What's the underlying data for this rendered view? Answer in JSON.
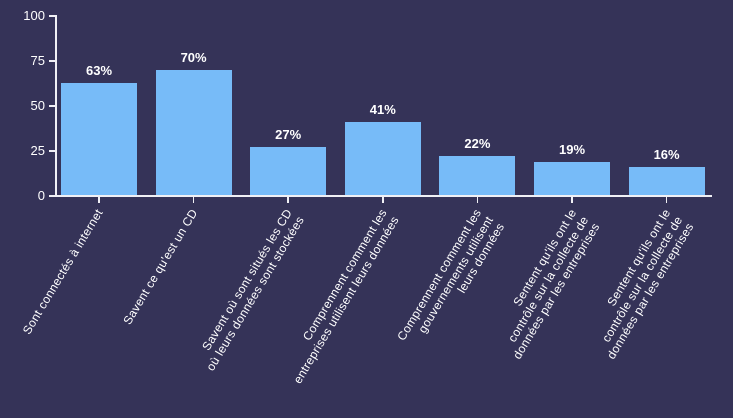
{
  "chart_data": {
    "type": "bar",
    "title": "",
    "xlabel": "",
    "ylabel": "",
    "ylim": [
      0,
      100
    ],
    "y_ticks": [
      0,
      25,
      50,
      75,
      100
    ],
    "grid": "off",
    "legend": "none",
    "categories": [
      "Sont connectés à internet",
      "Savent ce qu'est un CD",
      "Savent où sont situés les CD où leurs données sont stockées",
      "Comprennent comment les entreprises utilisent leurs données",
      "Comprennent comment les gouvernements utilisent leurs données",
      "Sentent qu'ils ont le contrôle sur la collecte de données par les entreprises",
      "Sentent qu'ils ont le contrôle sur la collecte de données par les entreprises"
    ],
    "categories_lines": [
      [
        "Sont connectés à internet"
      ],
      [
        "Savent ce qu'est un CD"
      ],
      [
        "Savent où sont situés les CD",
        "où leurs données sont stockées"
      ],
      [
        "Comprennent comment les",
        "entreprises utilisent leurs données"
      ],
      [
        "Comprennent comment les",
        "gouvernements utilisent",
        "leurs données"
      ],
      [
        "Sentent qu'ils ont le",
        "contrôle sur la collecte de",
        "données par les entreprises"
      ],
      [
        "Sentent qu'ils ont le",
        "contrôle sur la collecte de",
        "données par les entreprises"
      ]
    ],
    "values": [
      63,
      70,
      27,
      41,
      22,
      19,
      16
    ],
    "value_labels": [
      "63%",
      "70%",
      "27%",
      "41%",
      "22%",
      "19%",
      "16%"
    ],
    "colors": {
      "background": "#353358",
      "bar": "#77bbf8",
      "axis": "#f0f0f5",
      "text": "#ffffff"
    }
  }
}
